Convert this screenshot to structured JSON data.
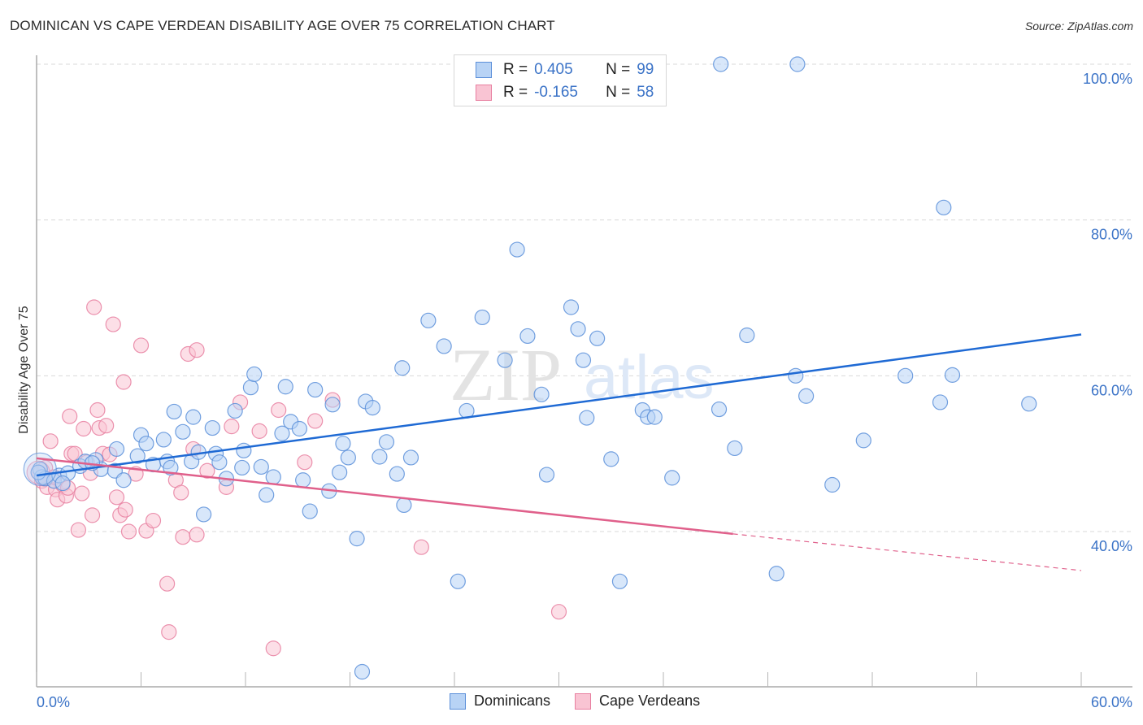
{
  "header": {
    "title": "DOMINICAN VS CAPE VERDEAN DISABILITY AGE OVER 75 CORRELATION CHART",
    "source": "Source: ZipAtlas.com"
  },
  "watermark": {
    "zip": "ZIP",
    "atlas": "atlas"
  },
  "legend": {
    "rows": [
      {
        "r_label": "R =",
        "r_value": "0.405",
        "n_label": "N =",
        "n_value": "99",
        "series": "Dominicans"
      },
      {
        "r_label": "R =",
        "r_value": "-0.165",
        "n_label": "N =",
        "n_value": "58",
        "series": "Cape Verdeans"
      }
    ]
  },
  "colors": {
    "dominicans_fill": "#b8d3f5",
    "dominicans_stroke": "#5b8fd9",
    "dominicans_line": "#1f6ad4",
    "cape_fill": "#f9c4d3",
    "cape_stroke": "#e87fa0",
    "cape_line": "#e0608b",
    "axis_text": "#3b73c7",
    "grid": "#d9d9d9"
  },
  "chart_data": {
    "type": "scatter",
    "title": "DOMINICAN VS CAPE VERDEAN DISABILITY AGE OVER 75 CORRELATION CHART",
    "xlabel": "",
    "ylabel": "Disability Age Over 75",
    "xlim": [
      0,
      60
    ],
    "ylim": [
      22,
      102
    ],
    "x_tick_labels": [
      "0.0%",
      "60.0%"
    ],
    "y_ticks": [
      40,
      60,
      80,
      100
    ],
    "y_tick_labels": [
      "40.0%",
      "60.0%",
      "80.0%",
      "100.0%"
    ],
    "grid": true,
    "legend_position": "top-center",
    "bottom_legend": [
      "Dominicans",
      "Cape Verdeans"
    ],
    "series": [
      {
        "name": "Dominicans",
        "r": 0.405,
        "n": 99,
        "trend": {
          "x0": 0,
          "y0": 47.2,
          "x1": 60,
          "y1": 65.3
        },
        "points": [
          [
            0.2,
            48.0
          ],
          [
            0.3,
            47.0
          ],
          [
            0.5,
            46.8
          ],
          [
            1.0,
            46.5
          ],
          [
            1.3,
            47.2
          ],
          [
            1.8,
            47.5
          ],
          [
            2.5,
            48.4
          ],
          [
            2.8,
            49.0
          ],
          [
            3.4,
            49.2
          ],
          [
            3.7,
            48.0
          ],
          [
            4.5,
            47.8
          ],
          [
            4.6,
            50.6
          ],
          [
            5.0,
            46.6
          ],
          [
            5.8,
            49.7
          ],
          [
            6.0,
            52.4
          ],
          [
            6.3,
            51.3
          ],
          [
            6.7,
            48.6
          ],
          [
            7.3,
            51.8
          ],
          [
            7.5,
            49.0
          ],
          [
            7.7,
            48.2
          ],
          [
            7.9,
            55.4
          ],
          [
            8.4,
            52.8
          ],
          [
            8.9,
            49.0
          ],
          [
            9.0,
            54.7
          ],
          [
            9.3,
            50.2
          ],
          [
            9.6,
            42.2
          ],
          [
            10.1,
            53.3
          ],
          [
            10.3,
            50.0
          ],
          [
            10.5,
            48.9
          ],
          [
            10.9,
            46.8
          ],
          [
            11.4,
            55.5
          ],
          [
            11.8,
            48.2
          ],
          [
            11.9,
            50.4
          ],
          [
            12.3,
            58.5
          ],
          [
            12.5,
            60.2
          ],
          [
            12.9,
            48.3
          ],
          [
            13.2,
            44.7
          ],
          [
            13.6,
            47.0
          ],
          [
            14.1,
            52.6
          ],
          [
            14.3,
            58.6
          ],
          [
            14.6,
            54.1
          ],
          [
            15.1,
            53.2
          ],
          [
            15.3,
            46.6
          ],
          [
            15.7,
            42.6
          ],
          [
            16.0,
            58.2
          ],
          [
            16.8,
            45.2
          ],
          [
            17.0,
            56.3
          ],
          [
            17.4,
            47.6
          ],
          [
            17.6,
            51.3
          ],
          [
            17.9,
            49.5
          ],
          [
            18.4,
            39.1
          ],
          [
            18.9,
            56.7
          ],
          [
            19.3,
            55.9
          ],
          [
            19.7,
            49.6
          ],
          [
            20.1,
            51.5
          ],
          [
            20.7,
            47.4
          ],
          [
            21.0,
            61.0
          ],
          [
            21.1,
            43.4
          ],
          [
            21.5,
            49.5
          ],
          [
            22.5,
            67.1
          ],
          [
            23.4,
            63.8
          ],
          [
            24.2,
            33.6
          ],
          [
            24.7,
            55.5
          ],
          [
            25.6,
            67.5
          ],
          [
            26.9,
            62.0
          ],
          [
            27.6,
            76.2
          ],
          [
            28.2,
            65.1
          ],
          [
            29.0,
            57.6
          ],
          [
            29.3,
            47.3
          ],
          [
            30.7,
            68.8
          ],
          [
            31.1,
            66.0
          ],
          [
            31.4,
            62.0
          ],
          [
            31.6,
            54.6
          ],
          [
            32.2,
            64.8
          ],
          [
            33.0,
            49.3
          ],
          [
            33.5,
            33.6
          ],
          [
            34.8,
            55.6
          ],
          [
            35.1,
            54.7
          ],
          [
            35.5,
            54.7
          ],
          [
            36.5,
            46.9
          ],
          [
            39.2,
            55.7
          ],
          [
            39.3,
            100.0
          ],
          [
            40.1,
            50.7
          ],
          [
            40.8,
            65.2
          ],
          [
            42.5,
            34.6
          ],
          [
            43.6,
            60.0
          ],
          [
            43.7,
            100.0
          ],
          [
            44.2,
            57.4
          ],
          [
            45.7,
            46.0
          ],
          [
            47.5,
            51.7
          ],
          [
            49.9,
            60.0
          ],
          [
            51.9,
            56.6
          ],
          [
            52.1,
            81.6
          ],
          [
            52.6,
            60.1
          ],
          [
            57.0,
            56.4
          ],
          [
            18.7,
            22.0
          ],
          [
            0.1,
            47.6
          ],
          [
            3.2,
            48.8
          ],
          [
            1.5,
            46.2
          ]
        ]
      },
      {
        "name": "Cape Verdeans",
        "r": -0.165,
        "n": 58,
        "trend": {
          "x0": 0,
          "y0": 49.4,
          "x1": 40.0,
          "y1": 39.7,
          "dashed_to": {
            "x": 60,
            "y": 35.0
          }
        },
        "points": [
          [
            0.2,
            47.5
          ],
          [
            0.3,
            46.5
          ],
          [
            0.5,
            48.2
          ],
          [
            0.6,
            45.7
          ],
          [
            0.8,
            51.6
          ],
          [
            1.1,
            45.4
          ],
          [
            1.2,
            44.1
          ],
          [
            1.5,
            46.0
          ],
          [
            1.7,
            44.6
          ],
          [
            1.8,
            45.6
          ],
          [
            1.9,
            54.8
          ],
          [
            2.0,
            50.0
          ],
          [
            2.2,
            50.0
          ],
          [
            2.4,
            40.2
          ],
          [
            2.6,
            44.9
          ],
          [
            2.7,
            53.2
          ],
          [
            2.9,
            48.9
          ],
          [
            3.1,
            47.5
          ],
          [
            3.2,
            42.1
          ],
          [
            3.3,
            68.8
          ],
          [
            3.5,
            55.6
          ],
          [
            3.6,
            53.3
          ],
          [
            3.8,
            50.0
          ],
          [
            4.0,
            53.6
          ],
          [
            4.2,
            49.9
          ],
          [
            4.4,
            66.6
          ],
          [
            4.6,
            44.4
          ],
          [
            4.8,
            42.1
          ],
          [
            5.0,
            59.2
          ],
          [
            5.1,
            42.8
          ],
          [
            5.3,
            40.0
          ],
          [
            5.7,
            47.4
          ],
          [
            6.0,
            63.9
          ],
          [
            6.3,
            40.1
          ],
          [
            6.7,
            41.4
          ],
          [
            7.5,
            33.3
          ],
          [
            7.6,
            27.1
          ],
          [
            8.0,
            46.6
          ],
          [
            8.3,
            45.0
          ],
          [
            8.4,
            39.3
          ],
          [
            8.7,
            62.8
          ],
          [
            9.0,
            50.6
          ],
          [
            9.2,
            63.3
          ],
          [
            9.2,
            39.6
          ],
          [
            9.8,
            47.8
          ],
          [
            10.9,
            45.7
          ],
          [
            11.2,
            53.5
          ],
          [
            11.7,
            56.6
          ],
          [
            12.8,
            52.9
          ],
          [
            13.6,
            25.0
          ],
          [
            13.9,
            55.6
          ],
          [
            15.4,
            48.9
          ],
          [
            16.0,
            54.2
          ],
          [
            17.0,
            56.9
          ],
          [
            22.1,
            38.0
          ],
          [
            30.0,
            29.7
          ],
          [
            1.0,
            47.0
          ],
          [
            0.4,
            46.8
          ]
        ]
      }
    ]
  }
}
